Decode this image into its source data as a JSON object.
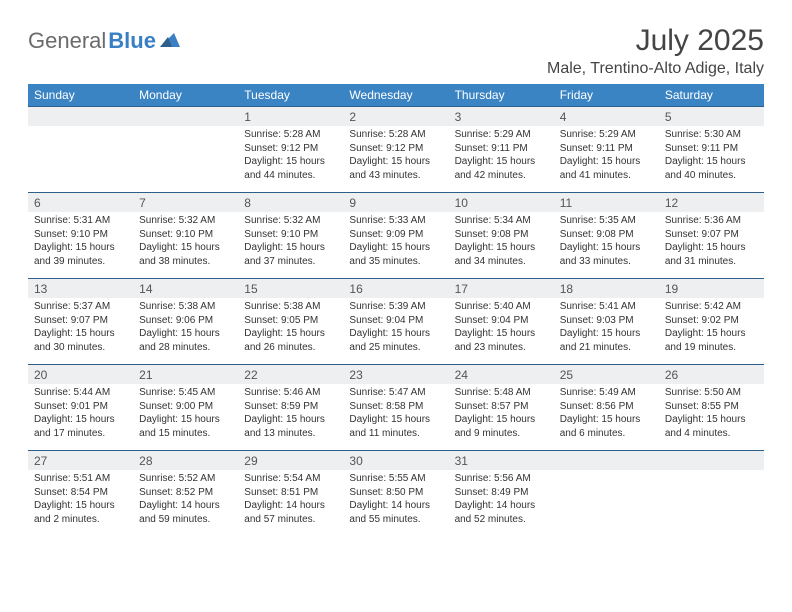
{
  "brand": {
    "text1": "General",
    "text2": "Blue"
  },
  "title": "July 2025",
  "location": "Male, Trentino-Alto Adige, Italy",
  "colors": {
    "header_bg": "#3b84c4",
    "header_text": "#ffffff",
    "date_bg": "#eeeff0",
    "date_border": "#2e5e8a",
    "brand_gray": "#6b6b6b",
    "brand_blue": "#3a7fc4"
  },
  "weekdays": [
    "Sunday",
    "Monday",
    "Tuesday",
    "Wednesday",
    "Thursday",
    "Friday",
    "Saturday"
  ],
  "weeks": [
    [
      null,
      null,
      {
        "n": "1",
        "sr": "5:28 AM",
        "ss": "9:12 PM",
        "dl": "15 hours and 44 minutes."
      },
      {
        "n": "2",
        "sr": "5:28 AM",
        "ss": "9:12 PM",
        "dl": "15 hours and 43 minutes."
      },
      {
        "n": "3",
        "sr": "5:29 AM",
        "ss": "9:11 PM",
        "dl": "15 hours and 42 minutes."
      },
      {
        "n": "4",
        "sr": "5:29 AM",
        "ss": "9:11 PM",
        "dl": "15 hours and 41 minutes."
      },
      {
        "n": "5",
        "sr": "5:30 AM",
        "ss": "9:11 PM",
        "dl": "15 hours and 40 minutes."
      }
    ],
    [
      {
        "n": "6",
        "sr": "5:31 AM",
        "ss": "9:10 PM",
        "dl": "15 hours and 39 minutes."
      },
      {
        "n": "7",
        "sr": "5:32 AM",
        "ss": "9:10 PM",
        "dl": "15 hours and 38 minutes."
      },
      {
        "n": "8",
        "sr": "5:32 AM",
        "ss": "9:10 PM",
        "dl": "15 hours and 37 minutes."
      },
      {
        "n": "9",
        "sr": "5:33 AM",
        "ss": "9:09 PM",
        "dl": "15 hours and 35 minutes."
      },
      {
        "n": "10",
        "sr": "5:34 AM",
        "ss": "9:08 PM",
        "dl": "15 hours and 34 minutes."
      },
      {
        "n": "11",
        "sr": "5:35 AM",
        "ss": "9:08 PM",
        "dl": "15 hours and 33 minutes."
      },
      {
        "n": "12",
        "sr": "5:36 AM",
        "ss": "9:07 PM",
        "dl": "15 hours and 31 minutes."
      }
    ],
    [
      {
        "n": "13",
        "sr": "5:37 AM",
        "ss": "9:07 PM",
        "dl": "15 hours and 30 minutes."
      },
      {
        "n": "14",
        "sr": "5:38 AM",
        "ss": "9:06 PM",
        "dl": "15 hours and 28 minutes."
      },
      {
        "n": "15",
        "sr": "5:38 AM",
        "ss": "9:05 PM",
        "dl": "15 hours and 26 minutes."
      },
      {
        "n": "16",
        "sr": "5:39 AM",
        "ss": "9:04 PM",
        "dl": "15 hours and 25 minutes."
      },
      {
        "n": "17",
        "sr": "5:40 AM",
        "ss": "9:04 PM",
        "dl": "15 hours and 23 minutes."
      },
      {
        "n": "18",
        "sr": "5:41 AM",
        "ss": "9:03 PM",
        "dl": "15 hours and 21 minutes."
      },
      {
        "n": "19",
        "sr": "5:42 AM",
        "ss": "9:02 PM",
        "dl": "15 hours and 19 minutes."
      }
    ],
    [
      {
        "n": "20",
        "sr": "5:44 AM",
        "ss": "9:01 PM",
        "dl": "15 hours and 17 minutes."
      },
      {
        "n": "21",
        "sr": "5:45 AM",
        "ss": "9:00 PM",
        "dl": "15 hours and 15 minutes."
      },
      {
        "n": "22",
        "sr": "5:46 AM",
        "ss": "8:59 PM",
        "dl": "15 hours and 13 minutes."
      },
      {
        "n": "23",
        "sr": "5:47 AM",
        "ss": "8:58 PM",
        "dl": "15 hours and 11 minutes."
      },
      {
        "n": "24",
        "sr": "5:48 AM",
        "ss": "8:57 PM",
        "dl": "15 hours and 9 minutes."
      },
      {
        "n": "25",
        "sr": "5:49 AM",
        "ss": "8:56 PM",
        "dl": "15 hours and 6 minutes."
      },
      {
        "n": "26",
        "sr": "5:50 AM",
        "ss": "8:55 PM",
        "dl": "15 hours and 4 minutes."
      }
    ],
    [
      {
        "n": "27",
        "sr": "5:51 AM",
        "ss": "8:54 PM",
        "dl": "15 hours and 2 minutes."
      },
      {
        "n": "28",
        "sr": "5:52 AM",
        "ss": "8:52 PM",
        "dl": "14 hours and 59 minutes."
      },
      {
        "n": "29",
        "sr": "5:54 AM",
        "ss": "8:51 PM",
        "dl": "14 hours and 57 minutes."
      },
      {
        "n": "30",
        "sr": "5:55 AM",
        "ss": "8:50 PM",
        "dl": "14 hours and 55 minutes."
      },
      {
        "n": "31",
        "sr": "5:56 AM",
        "ss": "8:49 PM",
        "dl": "14 hours and 52 minutes."
      },
      null,
      null
    ]
  ],
  "labels": {
    "sunrise": "Sunrise:",
    "sunset": "Sunset:",
    "daylight": "Daylight:"
  }
}
